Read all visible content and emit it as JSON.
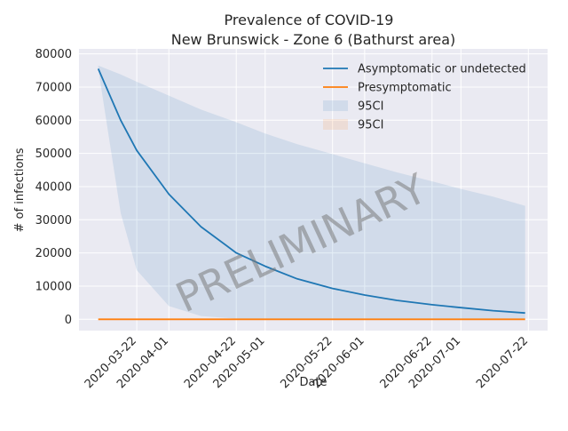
{
  "chart_data": {
    "type": "line",
    "title": "Prevalence of COVID-19",
    "subtitle": "New Brunswick - Zone 6 (Bathurst area)",
    "xlabel": "Date",
    "ylabel": "# of infections",
    "watermark": "PRELIMINARY",
    "x_ticks": [
      "2020-03-22",
      "2020-04-01",
      "2020-04-22",
      "2020-05-01",
      "2020-05-22",
      "2020-06-01",
      "2020-06-22",
      "2020-07-01",
      "2020-07-22"
    ],
    "y_ticks": [
      0,
      10000,
      20000,
      30000,
      40000,
      50000,
      60000,
      70000,
      80000
    ],
    "y_tick_labels": [
      "0",
      "10000",
      "20000",
      "30000",
      "40000",
      "50000",
      "60000",
      "70000",
      "80000"
    ],
    "ylim": [
      -3400,
      81500
    ],
    "xlim": [
      "2020-03-04",
      "2020-07-28"
    ],
    "grid": true,
    "legend_position": "top-right",
    "x": [
      "2020-03-10",
      "2020-03-17",
      "2020-03-22",
      "2020-04-01",
      "2020-04-11",
      "2020-04-22",
      "2020-05-01",
      "2020-05-11",
      "2020-05-22",
      "2020-06-01",
      "2020-06-11",
      "2020-06-22",
      "2020-07-01",
      "2020-07-11",
      "2020-07-21"
    ],
    "series": [
      {
        "name": "Asymptomatic or undetected",
        "color": "#1f77b4",
        "values": [
          75500,
          60000,
          50900,
          37700,
          27900,
          20000,
          16000,
          12200,
          9300,
          7300,
          5700,
          4400,
          3500,
          2600,
          1900
        ]
      },
      {
        "name": "Presymptomatic",
        "color": "#ff7f0e",
        "values": [
          0,
          0,
          0,
          0,
          0,
          0,
          0,
          0,
          0,
          0,
          0,
          0,
          0,
          0,
          0
        ]
      }
    ],
    "bands": [
      {
        "name": "95CI",
        "color": "#1f77b4",
        "upper": [
          76500,
          73800,
          71600,
          67400,
          63200,
          59400,
          56000,
          52800,
          49800,
          47000,
          44300,
          41600,
          39300,
          37000,
          34200
        ],
        "lower": [
          75500,
          32000,
          14800,
          4000,
          1000,
          200,
          0,
          0,
          0,
          0,
          0,
          0,
          0,
          0,
          0
        ]
      },
      {
        "name": "95CI",
        "color": "#ff7f0e",
        "upper": [
          0,
          0,
          0,
          0,
          0,
          0,
          0,
          0,
          0,
          0,
          0,
          0,
          0,
          0,
          0
        ],
        "lower": [
          0,
          0,
          0,
          0,
          0,
          0,
          0,
          0,
          0,
          0,
          0,
          0,
          0,
          0,
          0
        ]
      }
    ]
  }
}
